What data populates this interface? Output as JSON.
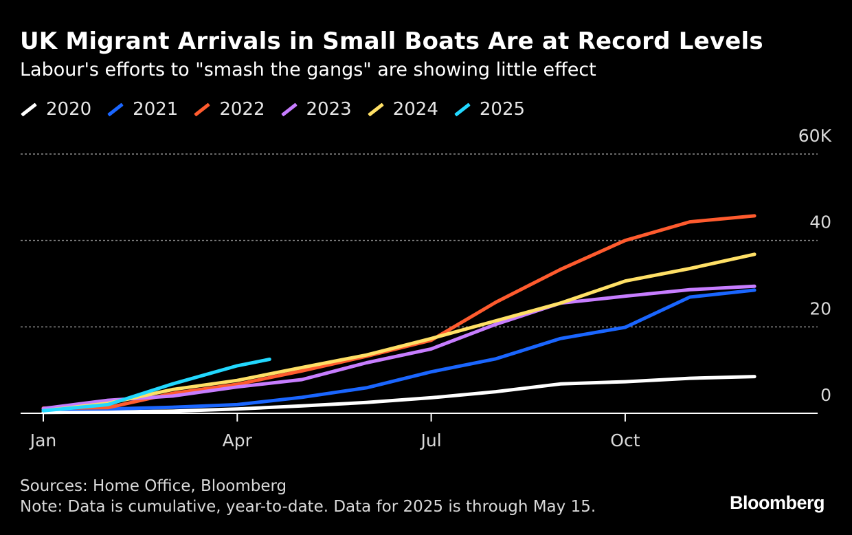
{
  "header": {
    "title": "UK Migrant Arrivals in Small Boats Are at Record Levels",
    "subtitle": "Labour's efforts to \"smash the gangs\" are showing little effect"
  },
  "footer": {
    "sources": "Sources: Home Office, Bloomberg",
    "note": "Note: Data is cumulative, year-to-date. Data for 2025 is through May 15.",
    "brand": "Bloomberg"
  },
  "chart_data": {
    "type": "line",
    "x_ticks": [
      "Jan",
      "Apr",
      "Jul",
      "Oct"
    ],
    "x_tick_months": [
      1,
      4,
      7,
      10
    ],
    "y_ticks": [
      "0",
      "20",
      "40",
      "60K"
    ],
    "y_tick_values": [
      0,
      20000,
      40000,
      60000
    ],
    "ylim": [
      0,
      60000
    ],
    "xlim": [
      1,
      13.3
    ],
    "grid": true,
    "legend_position": "top-left",
    "series": [
      {
        "name": "2020",
        "color": "#ffffff",
        "x": [
          1,
          2,
          3,
          4,
          5,
          6,
          7,
          8,
          9,
          10,
          11,
          12
        ],
        "y": [
          200,
          300,
          500,
          1000,
          1700,
          2500,
          3600,
          5000,
          6800,
          7300,
          8100,
          8500
        ]
      },
      {
        "name": "2021",
        "color": "#1a66ff",
        "x": [
          1,
          2,
          3,
          4,
          5,
          6,
          7,
          8,
          9,
          10,
          11,
          12
        ],
        "y": [
          900,
          1000,
          1400,
          2000,
          3700,
          5900,
          9600,
          12600,
          17300,
          19900,
          26900,
          28500
        ]
      },
      {
        "name": "2022",
        "color": "#ff5b2e",
        "x": [
          1,
          2,
          3,
          4,
          5,
          6,
          7,
          8,
          9,
          10,
          11,
          12
        ],
        "y": [
          1200,
          1300,
          4600,
          6700,
          9800,
          13200,
          16900,
          25700,
          33300,
          40000,
          44300,
          45700
        ]
      },
      {
        "name": "2023",
        "color": "#c77dff",
        "x": [
          1,
          2,
          3,
          4,
          5,
          6,
          7,
          8,
          9,
          10,
          11,
          12
        ],
        "y": [
          1100,
          3000,
          4000,
          6100,
          7800,
          11700,
          14900,
          20600,
          25500,
          27100,
          28600,
          29400
        ]
      },
      {
        "name": "2024",
        "color": "#ffe066",
        "x": [
          1,
          2,
          3,
          4,
          5,
          6,
          7,
          8,
          9,
          10,
          11,
          12
        ],
        "y": [
          600,
          2300,
          5500,
          7600,
          10600,
          13500,
          17300,
          21400,
          25500,
          30600,
          33500,
          36800
        ]
      },
      {
        "name": "2025",
        "color": "#22d8ff",
        "x": [
          1,
          2,
          3,
          4,
          4.5
        ],
        "y": [
          600,
          2000,
          6800,
          11000,
          12500
        ]
      }
    ]
  }
}
